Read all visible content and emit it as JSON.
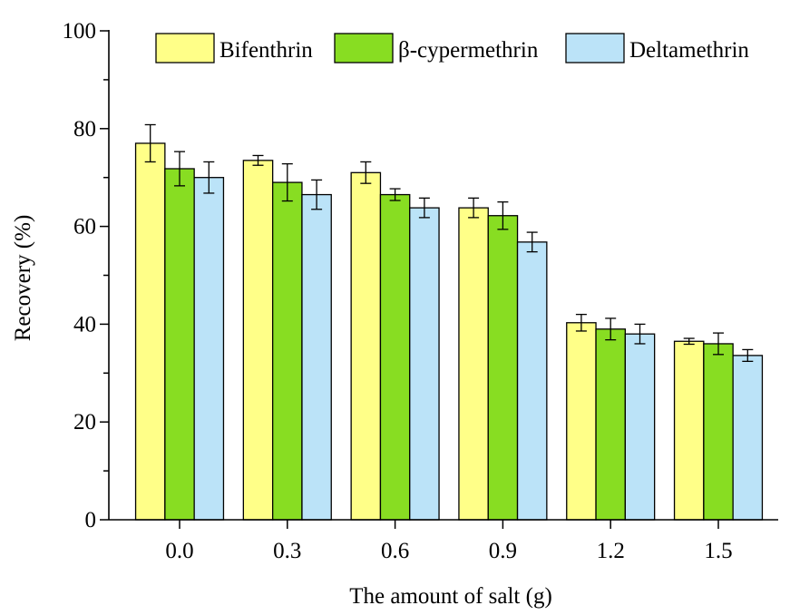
{
  "chart_data": {
    "type": "bar",
    "title": "",
    "xlabel": "The amount of salt (g)",
    "ylabel": "Recovery (%)",
    "ylim": [
      0,
      100
    ],
    "yticks": [
      "0",
      "20",
      "40",
      "60",
      "80",
      "100"
    ],
    "categories": [
      "0.0",
      "0.3",
      "0.6",
      "0.9",
      "1.2",
      "1.5"
    ],
    "grid": false,
    "legend_position": "top-right",
    "series": [
      {
        "name": "Bifenthrin",
        "color": "#ffff88",
        "values": [
          77.0,
          73.5,
          71.0,
          63.8,
          40.3,
          36.5
        ],
        "errors": [
          3.8,
          1.0,
          2.2,
          2.0,
          1.7,
          0.6
        ]
      },
      {
        "name": "β-cypermethrin",
        "color": "#88dd22",
        "values": [
          71.8,
          69.0,
          66.5,
          62.2,
          39.0,
          36.0
        ],
        "errors": [
          3.5,
          3.8,
          1.2,
          2.8,
          2.2,
          2.2
        ]
      },
      {
        "name": "Deltamethrin",
        "color": "#bbe3f8",
        "values": [
          70.0,
          66.5,
          63.8,
          56.8,
          38.0,
          33.6
        ],
        "errors": [
          3.2,
          3.0,
          2.0,
          2.0,
          2.0,
          1.2
        ]
      }
    ]
  }
}
